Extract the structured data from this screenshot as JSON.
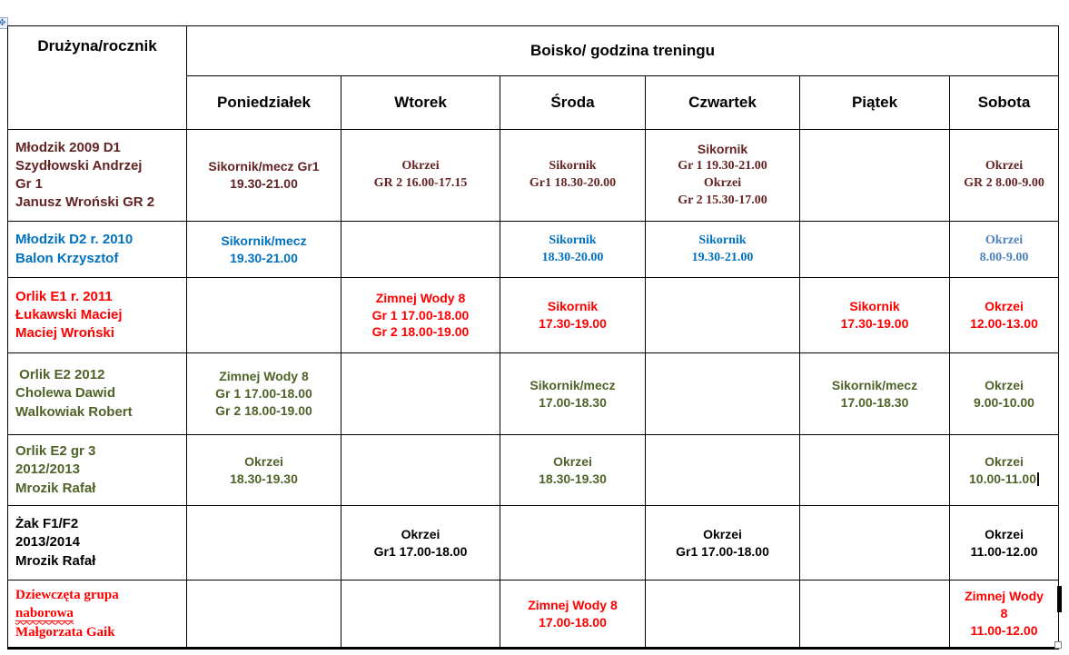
{
  "table": {
    "corner_header": "Drużyna/rocznik",
    "group_header": "Boisko/ godzina treningu",
    "day_headers": [
      "Poniedziałek",
      "Wtorek",
      "Środa",
      "Czwartek",
      "Piątek",
      "Sobota"
    ],
    "rows": [
      {
        "color": "#632423",
        "team": {
          "lines": [
            "Młodzik 2009 D1",
            "Szydłowski Andrzej",
            "Gr 1",
            "Janusz Wroński GR 2"
          ]
        },
        "cells": [
          {
            "lines": [
              "Sikornik/mecz Gr1",
              "19.30-21.00"
            ]
          },
          {
            "lines": [
              "Okrzei",
              "GR 2 16.00-17.15"
            ],
            "serif": true,
            "size": "small"
          },
          {
            "lines": [
              "Sikornik",
              "Gr1 18.30-20.00"
            ],
            "serif": true,
            "size": "small"
          },
          {
            "lines": [
              "Sikornik",
              {
                "t": "Gr 1 19.30-21.00",
                "serif": true
              },
              {
                "t": "Okrzei",
                "serif": true
              },
              {
                "t": "Gr 2 15.30-17.00",
                "serif": true
              }
            ],
            "size": "large"
          },
          {
            "lines": []
          },
          {
            "lines": [
              "Okrzei",
              "GR 2 8.00-9.00"
            ],
            "serif": true,
            "size": "small"
          }
        ]
      },
      {
        "color": "#0070C0",
        "team": {
          "lines": [
            "Młodzik D2 r. 2010",
            "Balon Krzysztof"
          ]
        },
        "cells": [
          {
            "lines": [
              "Sikornik/mecz",
              "19.30-21.00"
            ]
          },
          {
            "lines": []
          },
          {
            "lines": [
              "Sikornik",
              "18.30-20.00"
            ],
            "serif": true,
            "size": "small"
          },
          {
            "lines": [
              "Sikornik",
              "19.30-21.00"
            ],
            "serif": true,
            "size": "small"
          },
          {
            "lines": []
          },
          {
            "lines": [
              "Okrzei",
              "8.00-9.00"
            ],
            "serif": true,
            "size": "small",
            "color": "#4F81BD"
          }
        ]
      },
      {
        "color": "#FF0000",
        "team": {
          "lines": [
            "Orlik E1 r. 2011",
            "Łukawski Maciej",
            "Maciej Wroński"
          ]
        },
        "cells": [
          {
            "lines": []
          },
          {
            "lines": [
              "Zimnej Wody 8",
              "Gr 1 17.00-18.00",
              "Gr 2 18.00-19.00"
            ]
          },
          {
            "lines": [
              "Sikornik",
              "17.30-19.00"
            ],
            "size": "large"
          },
          {
            "lines": []
          },
          {
            "lines": [
              "Sikornik",
              "17.30-19.00"
            ]
          },
          {
            "lines": [
              "Okrzei",
              "12.00-13.00"
            ],
            "size": "large"
          }
        ]
      },
      {
        "color": "#4F6228",
        "team": {
          "lines": [
            " Orlik E2 2012",
            "Cholewa Dawid",
            "Walkowiak Robert"
          ]
        },
        "cells": [
          {
            "lines": [
              "Zimnej Wody 8",
              "Gr 1 17.00-18.00",
              "Gr 2 18.00-19.00"
            ]
          },
          {
            "lines": []
          },
          {
            "lines": [
              "Sikornik/mecz",
              "17.00-18.30"
            ]
          },
          {
            "lines": []
          },
          {
            "lines": [
              "Sikornik/mecz",
              "17.00-18.30"
            ]
          },
          {
            "lines": [
              "Okrzei",
              "9.00-10.00"
            ]
          }
        ]
      },
      {
        "color": "#4F6228",
        "team": {
          "lines": [
            "Orlik E2 gr 3",
            "2012/2013",
            "Mrozik Rafał"
          ]
        },
        "cells": [
          {
            "lines": [
              "Okrzei",
              "18.30-19.30"
            ]
          },
          {
            "lines": []
          },
          {
            "lines": [
              "Okrzei",
              "18.30-19.30"
            ]
          },
          {
            "lines": []
          },
          {
            "lines": []
          },
          {
            "lines": [
              "Okrzei",
              "10.00-11.00"
            ],
            "caret": true
          }
        ]
      },
      {
        "color": "#000000",
        "team": {
          "lines": [
            "Żak F1/F2",
            "2013/2014",
            "Mrozik Rafał"
          ]
        },
        "cells": [
          {
            "lines": []
          },
          {
            "lines": [
              "Okrzei",
              "Gr1 17.00-18.00"
            ]
          },
          {
            "lines": []
          },
          {
            "lines": [
              "Okrzei",
              "Gr1 17.00-18.00"
            ]
          },
          {
            "lines": []
          },
          {
            "lines": [
              "Okrzei",
              "11.00-12.00"
            ],
            "size": "large"
          }
        ]
      },
      {
        "color": "#FF0000",
        "team": {
          "lines": [
            "Dziewczęta grupa",
            "naborowa",
            "Małgorzata Gaik"
          ],
          "serif": true,
          "underline_index": 1
        },
        "cells": [
          {
            "lines": []
          },
          {
            "lines": []
          },
          {
            "lines": [
              "Zimnej Wody 8",
              "17.00-18.00"
            ]
          },
          {
            "lines": []
          },
          {
            "lines": []
          },
          {
            "lines": [
              "Zimnej Wody",
              "8",
              "11.00-12.00"
            ]
          }
        ]
      }
    ]
  },
  "artifacts": {
    "move_handle_glyph": "✥"
  }
}
